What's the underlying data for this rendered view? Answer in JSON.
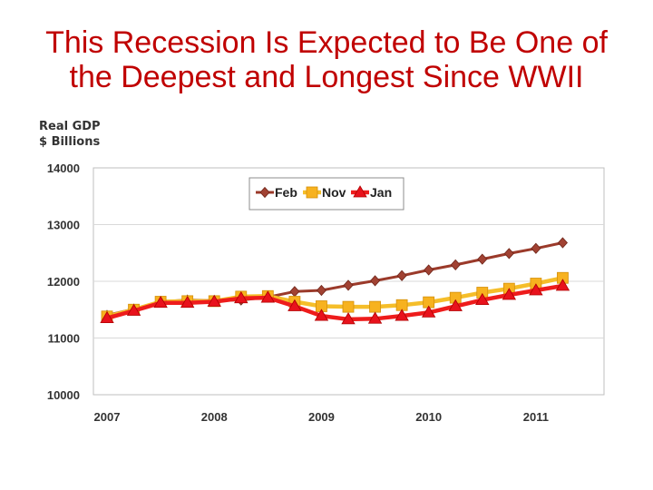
{
  "title": {
    "line1": "This Recession Is Expected to Be One of",
    "line2": "the Deepest and Longest Since WWII"
  },
  "colors": {
    "title": "#c00000",
    "Feb": "#9b3a2a",
    "Nov": "#f5be2a",
    "Jan": "#ee1c1c"
  },
  "chart_data": {
    "type": "line",
    "title": "",
    "ylabel_line1": "Real GDP",
    "ylabel_line2": "$ Billions",
    "xlabel": "",
    "ylim": [
      10000,
      14000
    ],
    "xlim": [
      2007.0,
      2011.5
    ],
    "y_ticks": [
      10000,
      11000,
      12000,
      13000,
      14000
    ],
    "x_ticks": [
      "2007",
      "2008",
      "2009",
      "2010",
      "2011"
    ],
    "grid": true,
    "legend_position": "top-center",
    "series": [
      {
        "name": "Feb",
        "marker": "diamond",
        "x": [
          2007.0,
          2007.25,
          2007.5,
          2007.75,
          2008.0,
          2008.25,
          2008.5,
          2008.75,
          2009.0,
          2009.25,
          2009.5,
          2009.75,
          2010.0,
          2010.25,
          2010.5,
          2010.75,
          2011.0,
          2011.25
        ],
        "values": [
          11400,
          11510,
          11640,
          11670,
          11660,
          11670,
          11720,
          11820,
          11840,
          11930,
          12010,
          12100,
          12200,
          12290,
          12390,
          12490,
          12580,
          12680
        ]
      },
      {
        "name": "Nov",
        "marker": "square",
        "x": [
          2007.0,
          2007.25,
          2007.5,
          2007.75,
          2008.0,
          2008.25,
          2008.5,
          2008.75,
          2009.0,
          2009.25,
          2009.5,
          2009.75,
          2010.0,
          2010.25,
          2010.5,
          2010.75,
          2011.0,
          2011.25
        ],
        "values": [
          11380,
          11500,
          11640,
          11650,
          11650,
          11730,
          11740,
          11640,
          11560,
          11550,
          11550,
          11580,
          11630,
          11710,
          11800,
          11870,
          11960,
          12060
        ]
      },
      {
        "name": "Jan",
        "marker": "triangle",
        "x": [
          2007.0,
          2007.25,
          2007.5,
          2007.75,
          2008.0,
          2008.25,
          2008.5,
          2008.75,
          2009.0,
          2009.25,
          2009.5,
          2009.75,
          2010.0,
          2010.25,
          2010.5,
          2010.75,
          2011.0,
          2011.25
        ],
        "values": [
          11350,
          11480,
          11620,
          11620,
          11640,
          11700,
          11710,
          11560,
          11390,
          11330,
          11340,
          11390,
          11450,
          11560,
          11670,
          11760,
          11840,
          11920
        ]
      }
    ]
  }
}
